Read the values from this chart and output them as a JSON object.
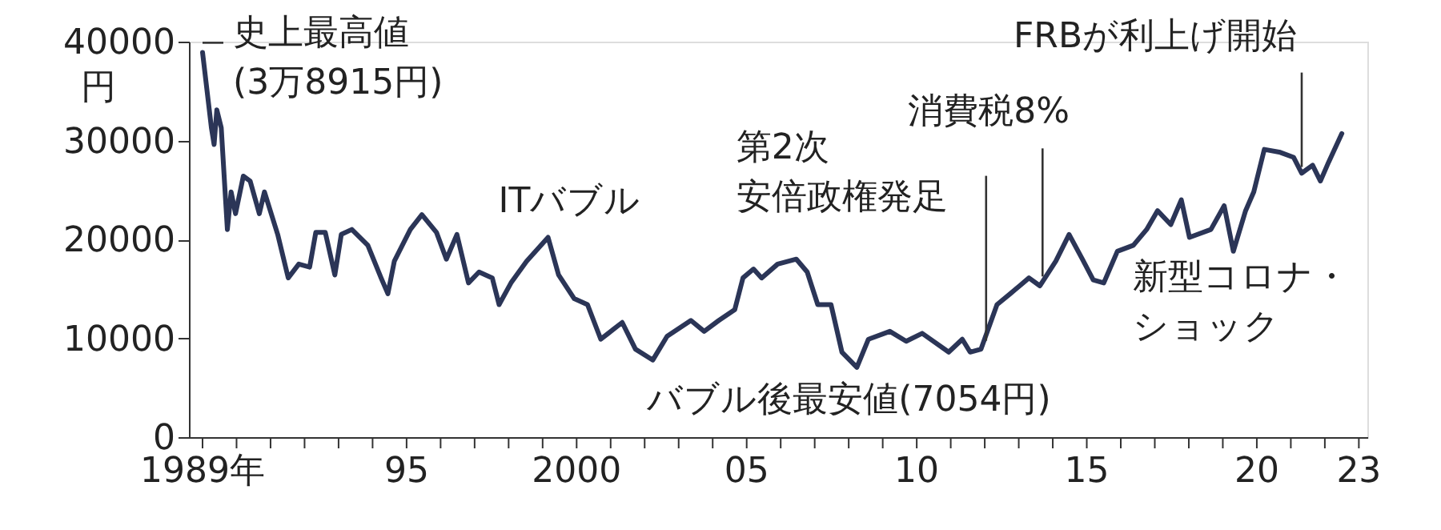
{
  "chart_data": {
    "type": "line",
    "ylabel": "円",
    "x": [
      1989.0,
      1989.26,
      1989.34,
      1989.42,
      1989.55,
      1989.73,
      1989.84,
      1989.97,
      1990.2,
      1990.4,
      1990.67,
      1990.82,
      1991.21,
      1991.52,
      1991.83,
      1992.15,
      1992.33,
      1992.61,
      1992.89,
      1993.08,
      1993.39,
      1993.86,
      1994.25,
      1994.45,
      1994.64,
      1995.11,
      1995.45,
      1995.88,
      1996.17,
      1996.48,
      1996.82,
      1997.13,
      1997.52,
      1997.72,
      1998.07,
      1998.53,
      1999.16,
      1999.47,
      1999.93,
      2000.32,
      2000.71,
      2001.34,
      2001.73,
      2002.24,
      2002.66,
      2003.36,
      2003.75,
      2004.18,
      2004.65,
      2004.89,
      2005.2,
      2005.44,
      2005.91,
      2006.46,
      2006.78,
      2007.09,
      2007.48,
      2007.8,
      2008.24,
      2008.58,
      2009.21,
      2009.69,
      2010.16,
      2010.94,
      2011.34,
      2011.57,
      2011.89,
      2012.36,
      2012.75,
      2013.3,
      2013.62,
      2014.09,
      2014.48,
      2014.87,
      2015.19,
      2015.5,
      2015.9,
      2016.37,
      2016.76,
      2017.08,
      2017.47,
      2017.78,
      2018.02,
      2018.65,
      2019.04,
      2019.31,
      2019.67,
      2019.91,
      2020.22,
      2020.69,
      2021.08,
      2021.32,
      2021.64,
      2021.87,
      2022.11,
      2022.5
    ],
    "series": [
      {
        "color": "#2b3557",
        "values": [
          38915,
          31300,
          29600,
          33100,
          31300,
          21000,
          24800,
          22600,
          26400,
          25900,
          22600,
          24800,
          20500,
          16100,
          17500,
          17200,
          20700,
          20700,
          16400,
          20500,
          21000,
          19400,
          16100,
          14500,
          17800,
          21000,
          22500,
          20700,
          18000,
          20500,
          15600,
          16700,
          16100,
          13400,
          15600,
          17800,
          20200,
          16400,
          14000,
          13400,
          9900,
          11600,
          8900,
          7800,
          10200,
          11800,
          10700,
          11800,
          12900,
          16100,
          17000,
          16100,
          17500,
          18000,
          16700,
          13400,
          13400,
          8600,
          7054,
          9900,
          10700,
          9700,
          10500,
          8600,
          9900,
          8600,
          8900,
          13400,
          14500,
          16100,
          15300,
          17800,
          20500,
          18000,
          15900,
          15600,
          18800,
          19400,
          21000,
          22900,
          21500,
          24000,
          20200,
          21000,
          23400,
          18800,
          22900,
          24800,
          29100,
          28800,
          28300,
          26700,
          27500,
          25900,
          27800,
          30700
        ]
      }
    ],
    "xlim": [
      1988.6,
      2023.25
    ],
    "xticks": [
      {
        "value": 1989,
        "label": "1989年"
      },
      {
        "value": 1990,
        "label": null
      },
      {
        "value": 1991,
        "label": null
      },
      {
        "value": 1992,
        "label": null
      },
      {
        "value": 1993,
        "label": null
      },
      {
        "value": 1994,
        "label": null
      },
      {
        "value": 1995,
        "label": "95"
      },
      {
        "value": 1996,
        "label": null
      },
      {
        "value": 1997,
        "label": null
      },
      {
        "value": 1998,
        "label": null
      },
      {
        "value": 1999,
        "label": null
      },
      {
        "value": 2000,
        "label": "2000"
      },
      {
        "value": 2001,
        "label": null
      },
      {
        "value": 2002,
        "label": null
      },
      {
        "value": 2003,
        "label": null
      },
      {
        "value": 2004,
        "label": null
      },
      {
        "value": 2005,
        "label": "05"
      },
      {
        "value": 2006,
        "label": null
      },
      {
        "value": 2007,
        "label": null
      },
      {
        "value": 2008,
        "label": null
      },
      {
        "value": 2009,
        "label": null
      },
      {
        "value": 2010,
        "label": "10"
      },
      {
        "value": 2011,
        "label": null
      },
      {
        "value": 2012,
        "label": null
      },
      {
        "value": 2013,
        "label": null
      },
      {
        "value": 2014,
        "label": null
      },
      {
        "value": 2015,
        "label": "15"
      },
      {
        "value": 2016,
        "label": null
      },
      {
        "value": 2017,
        "label": null
      },
      {
        "value": 2018,
        "label": null
      },
      {
        "value": 2019,
        "label": null
      },
      {
        "value": 2020,
        "label": "20"
      },
      {
        "value": 2021,
        "label": null
      },
      {
        "value": 2022,
        "label": null
      },
      {
        "value": 2023,
        "label": "23"
      }
    ],
    "ylim": [
      0,
      40000
    ],
    "yticks": [
      0,
      10000,
      20000,
      30000,
      40000
    ],
    "grid": false,
    "marker": "none",
    "line_style": "solid",
    "annotations": [
      {
        "text": "史上最高値(3万8915円)",
        "x": 1989.0,
        "y": 38915
      },
      {
        "text": "ITバブル",
        "x": 1999.16,
        "y": 20190
      },
      {
        "text": "バブル後最安値(7054円)",
        "x": 2008.24,
        "y": 7054
      },
      {
        "text": "第2次安倍政権発足",
        "x": 2012.04,
        "y": 9100
      },
      {
        "text": "消費税8%",
        "x": 2013.7,
        "y": 15600
      },
      {
        "text": "新型コロナ・ショック",
        "x": 2019.31,
        "y": 18800
      },
      {
        "text": "FRBが利上げ開始",
        "x": 2021.32,
        "y": 26670
      }
    ]
  }
}
